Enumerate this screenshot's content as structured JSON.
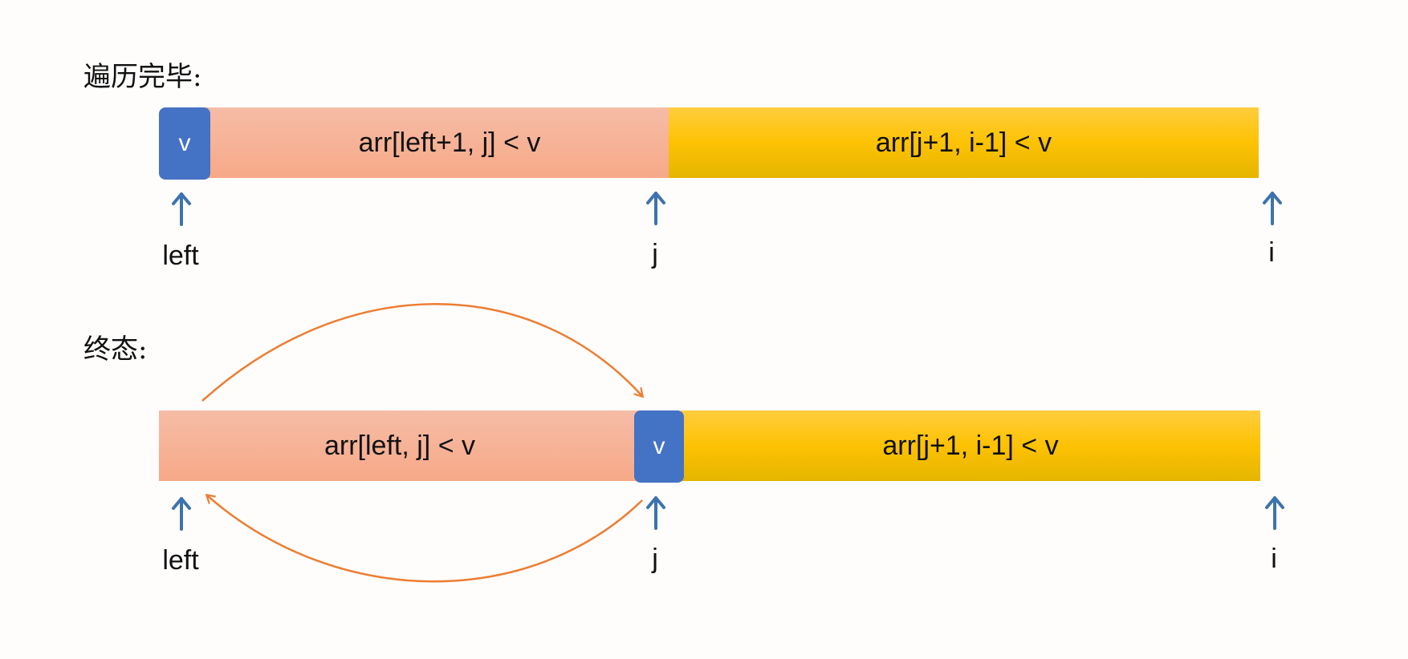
{
  "top": {
    "title": "遍历完毕:",
    "pivot": "v",
    "less_segment": "arr[left+1, j] < v",
    "greater_segment": "arr[j+1, i-1] < v",
    "pointers": {
      "left": "left",
      "j": "j",
      "i": "i"
    }
  },
  "bottom": {
    "title": "终态:",
    "less_segment": "arr[left, j] < v",
    "pivot": "v",
    "greater_segment": "arr[j+1, i-1] < v",
    "pointers": {
      "left": "left",
      "j": "j",
      "i": "i"
    }
  },
  "colors": {
    "pivot": "#4472c4",
    "less_segment": "#f7a988",
    "greater_segment": "#fdc203",
    "pointer_arrow": "#3d73ad",
    "swap_arrow": "#ed7d31"
  }
}
